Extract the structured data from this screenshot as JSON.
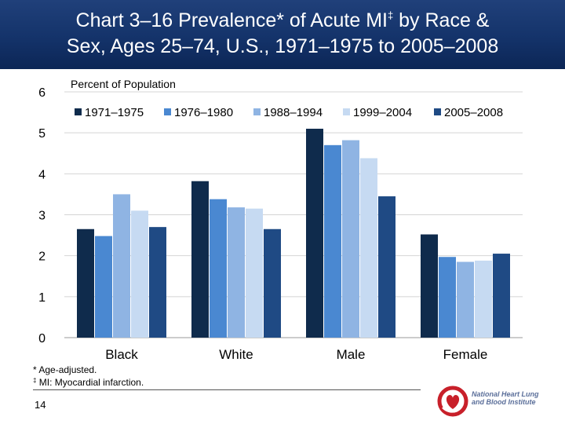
{
  "title": {
    "line1_before": "Chart 3–16 Prevalence* of Acute MI",
    "line1_mark": "‡",
    "line1_after": " by Race &",
    "line2": "Sex, Ages 25–74, U.S., 1971–1975 to 2005–2008"
  },
  "colors": {
    "banner": "#14336a",
    "series": [
      "#0f2b4c",
      "#4a88d1",
      "#8fb4e3",
      "#c6daf2",
      "#1f4a84"
    ]
  },
  "chart_data": {
    "type": "bar",
    "ylabel": "Percent of Population",
    "ylim": [
      0,
      6
    ],
    "yticks": [
      0,
      1,
      2,
      3,
      4,
      5,
      6
    ],
    "grid": true,
    "legend_position": "top",
    "categories": [
      "Black",
      "White",
      "Male",
      "Female"
    ],
    "series": [
      {
        "name": "1971–1975",
        "values": [
          2.65,
          3.82,
          5.1,
          2.52
        ]
      },
      {
        "name": "1976–1980",
        "values": [
          2.48,
          3.38,
          4.7,
          1.97
        ]
      },
      {
        "name": "1988–1994",
        "values": [
          3.5,
          3.18,
          4.82,
          1.85
        ]
      },
      {
        "name": "1999–2004",
        "values": [
          3.1,
          3.15,
          4.38,
          1.88
        ]
      },
      {
        "name": "2005–2008",
        "values": [
          2.7,
          2.65,
          3.45,
          2.05
        ]
      }
    ]
  },
  "footnotes": {
    "note1": "* Age-adjusted.",
    "note2_mark": "‡",
    "note2": " MI: Myocardial infarction."
  },
  "page_number": "14",
  "logo": {
    "icon": "nhlbi-heart-icon",
    "text": "National Heart Lung and Blood Institute"
  }
}
